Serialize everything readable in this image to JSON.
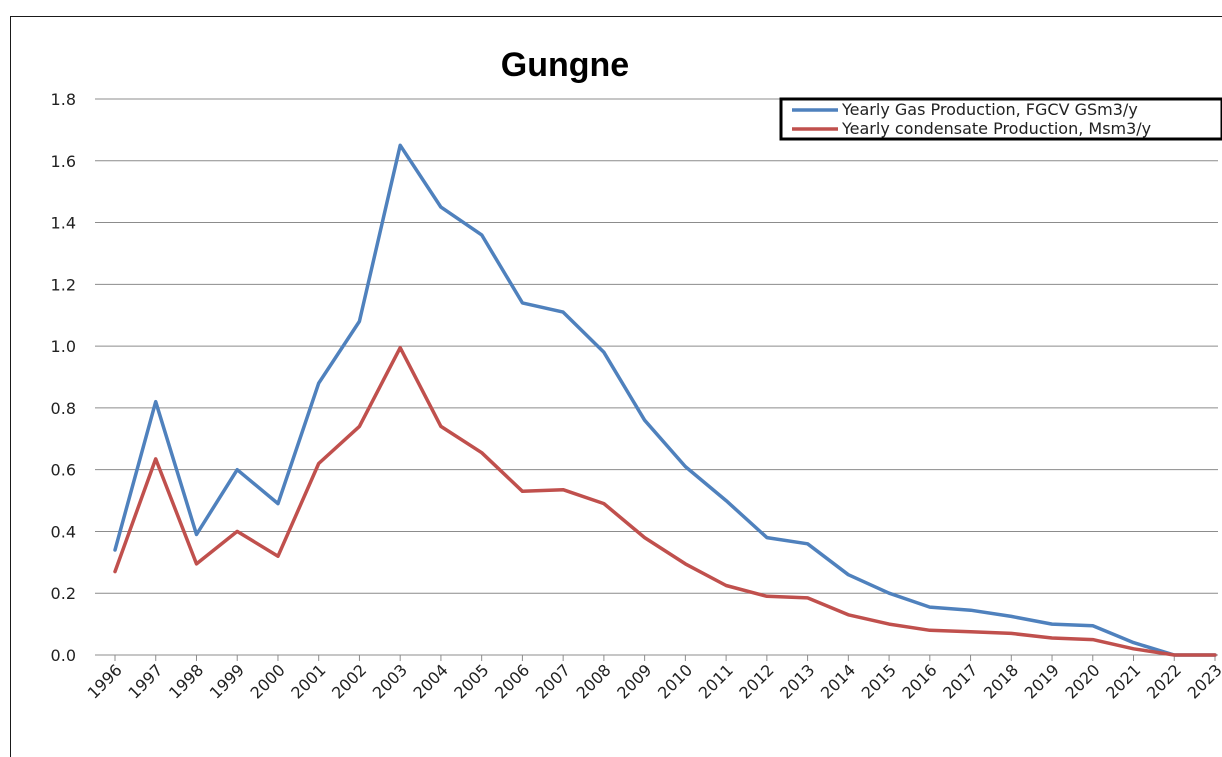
{
  "chart_data": {
    "type": "line",
    "title": "Gungne",
    "xlabel": "",
    "ylabel": "",
    "ylim": [
      0,
      1.8
    ],
    "yticks": [
      "0.0",
      "0.2",
      "0.4",
      "0.6",
      "0.8",
      "1.0",
      "1.2",
      "1.4",
      "1.6",
      "1.8"
    ],
    "grid": true,
    "legend_position": "top-right",
    "categories": [
      "1996",
      "1997",
      "1998",
      "1999",
      "2000",
      "2001",
      "2002",
      "2003",
      "2004",
      "2005",
      "2006",
      "2007",
      "2008",
      "2009",
      "2010",
      "2011",
      "2012",
      "2013",
      "2014",
      "2015",
      "2016",
      "2017",
      "2018",
      "2019",
      "2020",
      "2021",
      "2022",
      "2023"
    ],
    "series": [
      {
        "name": "Yearly Gas Production, FGCV GSm3/y",
        "color": "#4f81bd",
        "values": [
          0.34,
          0.82,
          0.39,
          0.6,
          0.49,
          0.88,
          1.08,
          1.65,
          1.45,
          1.36,
          1.14,
          1.11,
          0.98,
          0.76,
          0.61,
          0.5,
          0.38,
          0.36,
          0.26,
          0.2,
          0.155,
          0.145,
          0.125,
          0.1,
          0.095,
          0.04,
          0.0,
          0.0
        ]
      },
      {
        "name": "Yearly condensate Production, Msm3/y",
        "color": "#c0504d",
        "values": [
          0.27,
          0.635,
          0.295,
          0.4,
          0.32,
          0.62,
          0.74,
          0.995,
          0.74,
          0.655,
          0.53,
          0.535,
          0.49,
          0.38,
          0.295,
          0.225,
          0.19,
          0.185,
          0.13,
          0.1,
          0.08,
          0.075,
          0.07,
          0.055,
          0.05,
          0.02,
          0.0,
          0.0
        ]
      }
    ]
  }
}
